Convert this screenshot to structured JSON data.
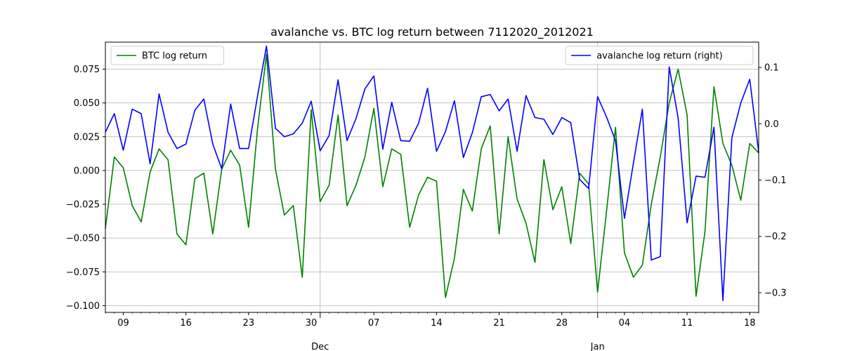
{
  "chart_data": {
    "type": "line",
    "title": "avalanche vs. BTC log return between 7112020_2012021",
    "xlabel": "",
    "ylabel": "",
    "ylabel_right": "",
    "x_start": "2020-11-07",
    "x_end": "2021-01-19",
    "x_ticks": [
      {
        "date": "2020-11-09",
        "label": "09",
        "major": false
      },
      {
        "date": "2020-11-16",
        "label": "16",
        "major": false
      },
      {
        "date": "2020-11-23",
        "label": "23",
        "major": false
      },
      {
        "date": "2020-11-30",
        "label": "30",
        "major": false
      },
      {
        "date": "2020-12-01",
        "label": "Dec",
        "major": true
      },
      {
        "date": "2020-12-07",
        "label": "07",
        "major": false
      },
      {
        "date": "2020-12-14",
        "label": "14",
        "major": false
      },
      {
        "date": "2020-12-21",
        "label": "21",
        "major": false
      },
      {
        "date": "2020-12-28",
        "label": "28",
        "major": false
      },
      {
        "date": "2021-01-01",
        "label": "Jan",
        "major": true
      },
      {
        "date": "2021-01-04",
        "label": "04",
        "major": false
      },
      {
        "date": "2021-01-11",
        "label": "11",
        "major": false
      },
      {
        "date": "2021-01-18",
        "label": "18",
        "major": false
      }
    ],
    "ylim": [
      -0.105,
      0.095
    ],
    "y_ticks": [
      -0.1,
      -0.075,
      -0.05,
      -0.025,
      0.0,
      0.025,
      0.05,
      0.075
    ],
    "y_tick_labels": [
      "−0.100",
      "−0.075",
      "−0.050",
      "−0.025",
      "0.000",
      "0.025",
      "0.050",
      "0.075"
    ],
    "ylim_right": [
      -0.335,
      0.145
    ],
    "y_ticks_right": [
      -0.3,
      -0.2,
      -0.1,
      0.0,
      0.1
    ],
    "y_tick_labels_right": [
      "−0.3",
      "−0.2",
      "−0.1",
      "0.0",
      "0.1"
    ],
    "grid": true,
    "series": [
      {
        "name": "BTC log return",
        "color": "#008000",
        "axis": "left",
        "legend_position": "upper left",
        "values": [
          -0.043,
          0.01,
          0.002,
          -0.026,
          -0.038,
          -0.001,
          0.016,
          0.008,
          -0.047,
          -0.055,
          -0.006,
          -0.002,
          -0.047,
          0.001,
          0.015,
          0.004,
          -0.042,
          0.031,
          0.086,
          0.001,
          -0.033,
          -0.026,
          -0.079,
          0.045,
          -0.023,
          -0.011,
          0.041,
          -0.026,
          -0.011,
          0.01,
          0.046,
          -0.012,
          0.016,
          0.012,
          -0.042,
          -0.018,
          -0.005,
          -0.008,
          -0.094,
          -0.065,
          -0.014,
          -0.03,
          0.016,
          0.033,
          -0.047,
          0.025,
          -0.021,
          -0.039,
          -0.068,
          0.008,
          -0.029,
          -0.012,
          -0.054,
          -0.002,
          -0.01,
          -0.09,
          -0.03,
          0.032,
          -0.061,
          -0.079,
          -0.07,
          -0.025,
          0.01,
          0.05,
          0.075,
          0.041,
          -0.093,
          -0.045,
          0.062,
          0.02,
          0.004,
          -0.022,
          0.02,
          0.013
        ]
      },
      {
        "name": "avalanche log return (right)",
        "color": "#0000ff",
        "axis": "right",
        "legend_position": "upper right",
        "values": [
          -0.015,
          0.018,
          -0.047,
          0.026,
          0.018,
          -0.071,
          0.053,
          -0.015,
          -0.044,
          -0.036,
          0.024,
          0.044,
          -0.036,
          -0.08,
          0.035,
          -0.044,
          -0.044,
          0.049,
          0.138,
          -0.008,
          -0.023,
          -0.018,
          0.001,
          0.04,
          -0.048,
          -0.021,
          0.078,
          -0.03,
          0.009,
          0.062,
          0.085,
          -0.045,
          0.038,
          -0.03,
          -0.031,
          0.001,
          0.063,
          -0.049,
          -0.014,
          0.041,
          -0.06,
          -0.016,
          0.048,
          0.052,
          0.023,
          0.044,
          -0.049,
          0.05,
          0.011,
          0.008,
          -0.019,
          0.011,
          0.002,
          -0.099,
          -0.115,
          0.048,
          0.012,
          -0.03,
          -0.168,
          -0.07,
          0.026,
          -0.242,
          -0.236,
          0.101,
          0.01,
          -0.176,
          -0.093,
          -0.095,
          -0.006,
          -0.314,
          -0.025,
          0.037,
          0.079,
          -0.051
        ]
      }
    ]
  }
}
